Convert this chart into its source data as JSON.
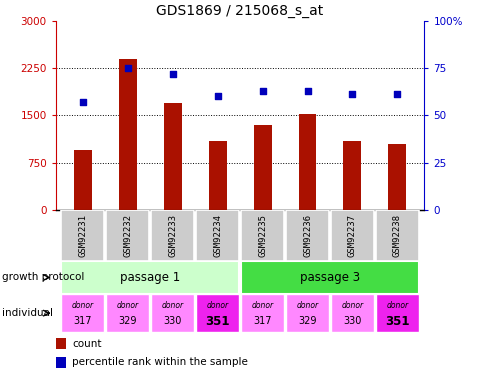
{
  "title": "GDS1869 / 215068_s_at",
  "samples": [
    "GSM92231",
    "GSM92232",
    "GSM92233",
    "GSM92234",
    "GSM92235",
    "GSM92236",
    "GSM92237",
    "GSM92238"
  ],
  "counts": [
    950,
    2400,
    1700,
    1100,
    1350,
    1520,
    1100,
    1050
  ],
  "percentiles": [
    57,
    75,
    72,
    60,
    63,
    63,
    61,
    61
  ],
  "ylim_left": [
    0,
    3000
  ],
  "ylim_right": [
    0,
    100
  ],
  "yticks_left": [
    0,
    750,
    1500,
    2250,
    3000
  ],
  "yticks_right": [
    0,
    25,
    50,
    75,
    100
  ],
  "ytick_labels_right": [
    "0",
    "25",
    "50",
    "75",
    "100%"
  ],
  "bar_color": "#aa1100",
  "dot_color": "#0000bb",
  "passage1_color": "#ccffcc",
  "passage3_color": "#44dd44",
  "donor_colors_light": "#ff88ff",
  "donor_colors_dark": "#ee22ee",
  "passage_labels": [
    "passage 1",
    "passage 3"
  ],
  "donor_labels": [
    "317",
    "329",
    "330",
    "351",
    "317",
    "329",
    "330",
    "351"
  ],
  "growth_protocol_label": "growth protocol",
  "individual_label": "individual",
  "legend_count": "count",
  "legend_percentile": "percentile rank within the sample",
  "sample_box_color": "#cccccc",
  "tick_label_color_left": "#cc0000",
  "tick_label_color_right": "#0000cc",
  "bar_width": 0.4
}
